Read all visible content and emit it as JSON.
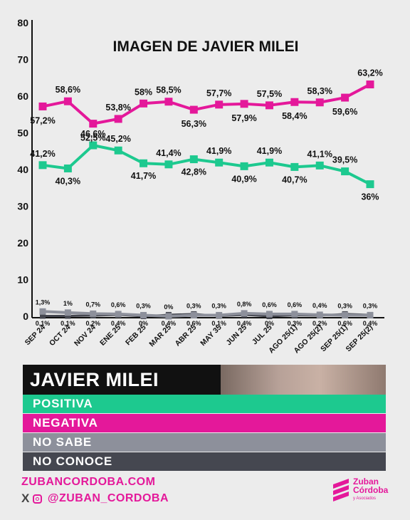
{
  "chart_data": {
    "type": "line",
    "title": "IMAGEN DE JAVIER MILEI",
    "ylim": [
      0,
      80
    ],
    "yticks": [
      0,
      10,
      20,
      30,
      40,
      50,
      60,
      70,
      80
    ],
    "categories": [
      "SEP 24",
      "OCT 24",
      "NOV 24",
      "ENE 25",
      "FEB 25",
      "MAR 25",
      "ABR 25",
      "MAY 35",
      "JUN 25",
      "JUL 25",
      "AGO 25(1)",
      "AGO 25(2)",
      "SEP 25(1)",
      "SEP 25(2)"
    ],
    "series": [
      {
        "name": "POSITIVA",
        "color": "#1dc98f",
        "values": [
          41.2,
          40.3,
          46.6,
          45.2,
          41.7,
          41.4,
          42.8,
          41.9,
          40.9,
          41.9,
          40.7,
          41.1,
          39.5,
          36
        ],
        "labels": [
          "41,2%",
          "40,3%",
          "46,6%",
          "45,2%",
          "41,7%",
          "41,4%",
          "42,8%",
          "41,9%",
          "40,9%",
          "41,9%",
          "40,7%",
          "41,1%",
          "39,5%",
          "36%"
        ]
      },
      {
        "name": "NEGATIVA",
        "color": "#e4189a",
        "values": [
          57.2,
          58.6,
          52.5,
          53.8,
          58,
          58.5,
          56.3,
          57.7,
          57.9,
          57.5,
          58.4,
          58.3,
          59.6,
          63.2
        ],
        "labels": [
          "57,2%",
          "58,6%",
          "52,5%",
          "53,8%",
          "58%",
          "58,5%",
          "56,3%",
          "57,7%",
          "57,9%",
          "57,5%",
          "58,4%",
          "58,3%",
          "59,6%",
          "63,2%"
        ]
      },
      {
        "name": "NO SABE",
        "color": "#8d909b",
        "values": [
          1.3,
          1,
          0.7,
          0.6,
          0.3,
          0,
          0.3,
          0.3,
          0.8,
          0.6,
          0.6,
          0.4,
          0.3,
          0.3
        ],
        "labels": [
          "1,3%",
          "1%",
          "0,7%",
          "0,6%",
          "0,3%",
          "0%",
          "0,3%",
          "0,3%",
          "0,8%",
          "0,6%",
          "0,6%",
          "0,4%",
          "0,3%",
          "0,3%"
        ]
      },
      {
        "name": "NO CONOCE",
        "color": "#454750",
        "values": [
          0.1,
          0.1,
          0.2,
          0.4,
          0,
          0.4,
          0.6,
          0.1,
          0.4,
          0,
          0.3,
          0.2,
          0.6,
          0.4
        ],
        "labels": [
          "0,1%",
          "0,1%",
          "0,2%",
          "0,4%",
          "0%",
          "0,4%",
          "0,6%",
          "0,1%",
          "0,4%",
          "0%",
          "0,3%",
          "0,2%",
          "0,6%",
          "0,4%"
        ]
      }
    ]
  },
  "legend": {
    "title": "JAVIER MILEI",
    "items": [
      {
        "label": "POSITIVA",
        "color": "#1dc98f"
      },
      {
        "label": "NEGATIVA",
        "color": "#e4189a"
      },
      {
        "label": "NO SABE",
        "color": "#8d909b"
      },
      {
        "label": "NO CONOCE",
        "color": "#454750"
      }
    ]
  },
  "footer": {
    "url": "ZUBANCORDOBA.COM",
    "social_x": "X",
    "social_handle": "@ZUBAN_CORDOBA",
    "brand_line1": "Zuban",
    "brand_line2": "Córdoba",
    "brand_line3": "y Asociados"
  }
}
